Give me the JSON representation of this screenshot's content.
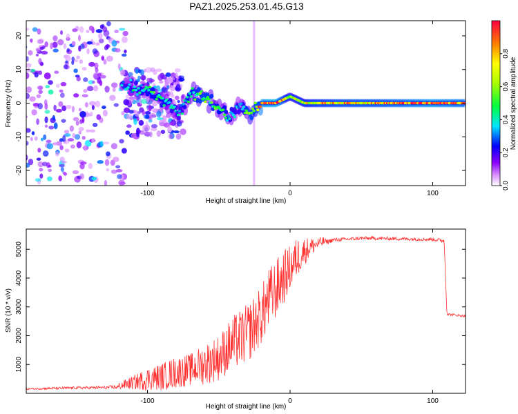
{
  "figure_title": "PAZ1.2025.253.01.45.G13",
  "chart_data": [
    {
      "type": "heatmap",
      "title": "PAZ1.2025.253.01.45.G13",
      "xlabel": "Height of straight line (km)",
      "ylabel": "Frequency (Hz)",
      "xlim": [
        -185,
        123
      ],
      "ylim": [
        -24.5,
        24.5
      ],
      "xticks": [
        -100,
        0,
        100
      ],
      "yticks": [
        -20,
        -10,
        0,
        10,
        20
      ],
      "colorbar": {
        "label": "Normalized spectral amplitude",
        "range": [
          0,
          1
        ],
        "ticks": [
          0.0,
          0.2,
          0.4,
          0.6,
          0.8
        ],
        "colormap": [
          "#ffffff",
          "#8a00ff",
          "#0000ff",
          "#00e5ff",
          "#00ff40",
          "#ffff00",
          "#ff7f00",
          "#ff0040"
        ]
      },
      "ridge": {
        "description": "dominant frequency vs height",
        "x": [
          -115,
          -105,
          -95,
          -85,
          -78,
          -70,
          -60,
          -50,
          -42,
          -35,
          -28,
          -20,
          -10,
          0,
          10,
          20,
          40,
          60,
          80,
          100,
          123
        ],
        "y": [
          5,
          4,
          3,
          0,
          -3,
          3,
          2,
          -2,
          -4,
          -1,
          -3,
          0,
          0,
          2,
          0,
          0,
          0,
          0,
          0,
          0,
          0
        ],
        "peak_amplitude": [
          0.35,
          0.4,
          0.45,
          0.4,
          0.35,
          0.45,
          0.5,
          0.45,
          0.4,
          0.35,
          0.55,
          0.9,
          0.95,
          0.6,
          0.7,
          0.75,
          0.8,
          0.8,
          0.85,
          0.9,
          0.85
        ]
      },
      "noise_region": {
        "x_range": [
          -185,
          -115
        ],
        "y_range": [
          -24.5,
          24.5
        ],
        "amplitude": [
          0.05,
          0.3
        ]
      }
    },
    {
      "type": "line",
      "title": "",
      "xlabel": "Height of straight line (km)",
      "ylabel": "SNR (10 * v/v)",
      "xlim": [
        -185,
        123
      ],
      "ylim": [
        0,
        5700
      ],
      "xticks": [
        -100,
        0,
        100
      ],
      "yticks": [
        1000,
        2000,
        3000,
        4000,
        5000
      ],
      "color": "#ff3030",
      "series": [
        {
          "name": "SNR",
          "x": [
            -185,
            -170,
            -150,
            -130,
            -120,
            -110,
            -100,
            -90,
            -80,
            -70,
            -60,
            -50,
            -40,
            -30,
            -20,
            -15,
            -10,
            -5,
            0,
            5,
            10,
            15,
            20,
            25,
            30,
            40,
            50,
            60,
            70,
            80,
            90,
            100,
            108,
            110,
            115,
            123
          ],
          "y": [
            150,
            170,
            190,
            200,
            220,
            300,
            380,
            430,
            560,
            650,
            800,
            1000,
            1450,
            1750,
            2400,
            2900,
            3300,
            3700,
            4100,
            4500,
            4800,
            5000,
            5150,
            5250,
            5320,
            5350,
            5380,
            5380,
            5370,
            5360,
            5350,
            5340,
            5300,
            2750,
            2720,
            2680
          ],
          "noise_envelope": [
            60,
            80,
            90,
            100,
            150,
            300,
            500,
            600,
            700,
            700,
            900,
            1000,
            1200,
            1300,
            1300,
            1400,
            1300,
            1200,
            1000,
            900,
            600,
            400,
            250,
            180,
            150,
            120,
            120,
            120,
            120,
            120,
            120,
            120,
            150,
            80,
            80,
            80
          ]
        }
      ]
    }
  ]
}
